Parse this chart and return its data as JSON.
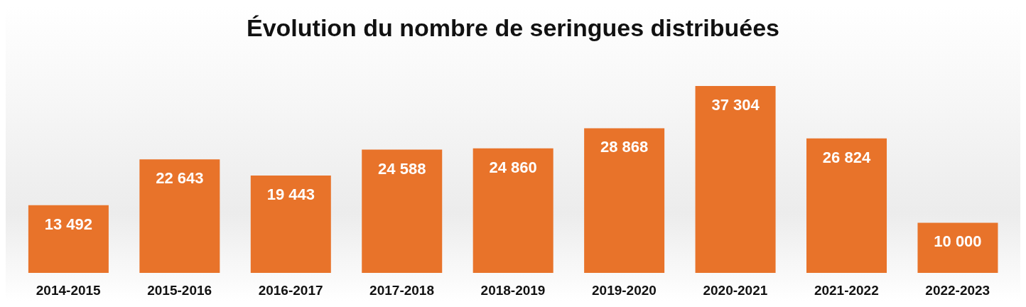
{
  "chart_data": {
    "type": "bar",
    "title": "Évolution du nombre de seringues distribuées",
    "categories": [
      "2014-2015",
      "2015-2016",
      "2016-2017",
      "2017-2018",
      "2018-2019",
      "2019-2020",
      "2020-2021",
      "2021-2022",
      "2022-2023"
    ],
    "values": [
      13492,
      22643,
      19443,
      24588,
      24860,
      28868,
      37304,
      26824,
      10000
    ],
    "value_labels": [
      "13 492",
      "22 643",
      "19 443",
      "24 588",
      "24 860",
      "28 868",
      "37 304",
      "26 824",
      "10 000"
    ],
    "color": "#e8732a",
    "grid": false
  }
}
